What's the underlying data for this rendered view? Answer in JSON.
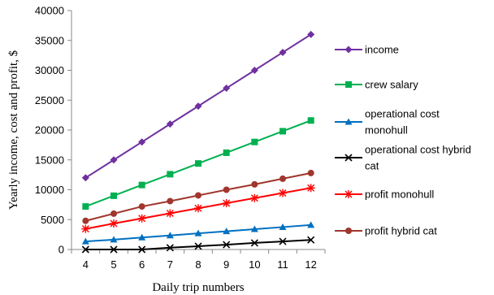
{
  "chart_data": {
    "type": "line",
    "title": "",
    "xlabel": "Daily trip numbers",
    "ylabel": "Yearly income, cost and profit, $",
    "x": [
      4,
      5,
      6,
      7,
      8,
      9,
      10,
      11,
      12
    ],
    "ylim": [
      0,
      40000
    ],
    "yticks": [
      0,
      5000,
      10000,
      15000,
      20000,
      25000,
      30000,
      35000,
      40000
    ],
    "grid": false,
    "legend_position": "right",
    "series": [
      {
        "name": "income",
        "legend_lines": [
          "income"
        ],
        "color": "#7030a0",
        "marker": "diamond",
        "values": [
          12000,
          15000,
          18000,
          21000,
          24000,
          27000,
          30000,
          33000,
          36000
        ]
      },
      {
        "name": "crew salary",
        "legend_lines": [
          "crew salary"
        ],
        "color": "#00b050",
        "marker": "square",
        "values": [
          7200,
          9000,
          10800,
          12600,
          14400,
          16200,
          18000,
          19800,
          21600
        ]
      },
      {
        "name": "operational cost monohull",
        "legend_lines": [
          "operational cost",
          "monohull"
        ],
        "color": "#0070c0",
        "marker": "triangle",
        "values": [
          1350,
          1650,
          2000,
          2350,
          2700,
          3050,
          3400,
          3750,
          4100
        ]
      },
      {
        "name": "operational cost hybrid cat",
        "legend_lines": [
          "operational cost hybrid",
          "cat"
        ],
        "color": "#000000",
        "marker": "x",
        "values": [
          0,
          0,
          0,
          300,
          550,
          800,
          1100,
          1350,
          1600
        ]
      },
      {
        "name": "profit monohull",
        "legend_lines": [
          "profit monohull"
        ],
        "color": "#ff0000",
        "marker": "asterisk",
        "values": [
          3450,
          4350,
          5200,
          6050,
          6900,
          7750,
          8600,
          9450,
          10300
        ]
      },
      {
        "name": "profit hybrid cat",
        "legend_lines": [
          "profit hybrid cat"
        ],
        "color": "#a0362d",
        "marker": "circle",
        "values": [
          4800,
          6000,
          7200,
          8100,
          9050,
          10000,
          10900,
          11850,
          12800
        ]
      }
    ]
  }
}
